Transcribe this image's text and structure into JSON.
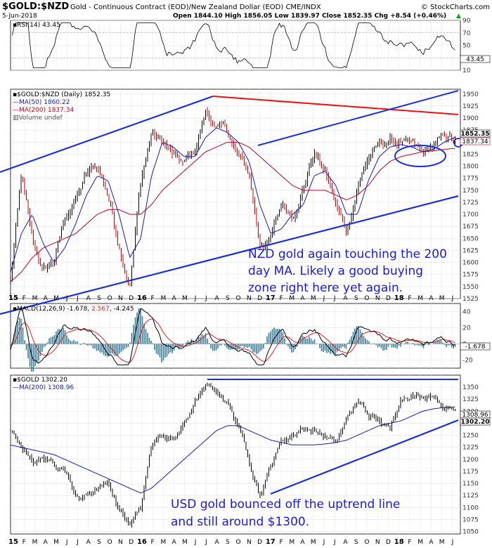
{
  "header": {
    "symbol": "$GOLD:$NZD",
    "description": "Gold - Continuous Contract (EOD)/New Zealand Dollar (EOD)",
    "exchange": "CME/INDX",
    "brand": "© StockCharts.com",
    "date": "5-Jun-2018",
    "ohlc": "Open 1844.10  High 1856.05  Low 1839.97  Close 1852.35  Chg +8.54 (+0.46%)",
    "ohlc_close_marker": "▲"
  },
  "rsi_panel": {
    "label": "RSI(14) 43.45",
    "ticks": [
      "90",
      "70",
      "50",
      "30",
      "10"
    ],
    "last_value": "43.45"
  },
  "nzd_panel": {
    "legend": [
      "$GOLD:$NZD (Daily) 1852.35",
      "MA(50) 1860.22",
      "MA(200) 1837.34",
      "Volume undef"
    ],
    "ticks": [
      "1950",
      "1925",
      "1900",
      "1875",
      "1850",
      "1825",
      "1800",
      "1775",
      "1750",
      "1725",
      "1700",
      "1675",
      "1650",
      "1625",
      "1600",
      "1575",
      "1550",
      "1525"
    ],
    "last_values": [
      "1852.35",
      "1837.34"
    ],
    "annotation_lines": [
      "NZD gold again touching the 200",
      "day MA. Likely a good buying",
      "zone right here yet again."
    ]
  },
  "macd_panel": {
    "label": "MACD(12,26,9) -1.678, 2.567, -4.245",
    "label_parts": [
      "MACD(12,26,9) -1.678, ",
      "2.567",
      ", -4.245"
    ],
    "ticks": [
      "40",
      "20",
      "0",
      "-20"
    ],
    "last_value": "-1.678"
  },
  "usd_panel": {
    "legend": [
      "$GOLD 1302.20",
      "MA(200) 1308.96"
    ],
    "ticks": [
      "1350",
      "1325",
      "1300",
      "1275",
      "1250",
      "1225",
      "1200",
      "1175",
      "1150",
      "1125",
      "1100",
      "1075",
      "1050"
    ],
    "last_values": [
      "1302.20",
      "1308.96"
    ],
    "annotation_lines": [
      "USD gold bounced off the uptrend line",
      "and still around $1300."
    ]
  },
  "x_axis": {
    "labels": [
      "15",
      "F",
      "M",
      "A",
      "M",
      "J",
      "J",
      "A",
      "S",
      "O",
      "N",
      "D",
      "16",
      "F",
      "M",
      "A",
      "M",
      "J",
      "J",
      "A",
      "S",
      "O",
      "N",
      "D",
      "17",
      "F",
      "M",
      "A",
      "M",
      "J",
      "J",
      "A",
      "S",
      "O",
      "N",
      "D",
      "18",
      "F",
      "M",
      "A",
      "M",
      "J"
    ],
    "year_labels": [
      "15",
      "16",
      "17",
      "18"
    ]
  },
  "colors": {
    "price": "#000000",
    "price_down": "#cc0000",
    "ma50": "#1a1ab0",
    "ma200": "#c00020",
    "trendline": "#1b2fd6",
    "resistance_red": "#ee1111",
    "macd_hist": "#3d7f99",
    "macd_signal": "#dd2222",
    "annotation": "#1a1adc"
  },
  "chart_data": [
    {
      "type": "line",
      "title": "$GOLD:$NZD (Daily)",
      "x": [
        "Jan-2015",
        "Feb-2015",
        "Mar-2015",
        "Apr-2015",
        "May-2015",
        "Jun-2015",
        "Jul-2015",
        "Aug-2015",
        "Sep-2015",
        "Oct-2015",
        "Nov-2015",
        "Dec-2015",
        "Jan-2016",
        "Feb-2016",
        "Mar-2016",
        "Apr-2016",
        "May-2016",
        "Jun-2016",
        "Jul-2016",
        "Aug-2016",
        "Sep-2016",
        "Oct-2016",
        "Nov-2016",
        "Dec-2016",
        "Jan-2017",
        "Feb-2017",
        "Mar-2017",
        "Apr-2017",
        "May-2017",
        "Jun-2017",
        "Jul-2017",
        "Aug-2017",
        "Sep-2017",
        "Oct-2017",
        "Nov-2017",
        "Dec-2017",
        "Jan-2018",
        "Feb-2018",
        "Mar-2018",
        "Apr-2018",
        "May-2018",
        "Jun-2018"
      ],
      "series": [
        {
          "name": "$GOLD:$NZD",
          "values": [
            1560,
            1780,
            1640,
            1580,
            1600,
            1690,
            1730,
            1780,
            1800,
            1740,
            1640,
            1560,
            1770,
            1870,
            1850,
            1820,
            1800,
            1830,
            1910,
            1880,
            1870,
            1820,
            1780,
            1640,
            1650,
            1720,
            1700,
            1760,
            1830,
            1790,
            1720,
            1660,
            1760,
            1820,
            1840,
            1850,
            1850,
            1840,
            1820,
            1840,
            1860,
            1852.35
          ]
        },
        {
          "name": "MA(50)",
          "values": [
            1580,
            1660,
            1700,
            1640,
            1600,
            1630,
            1680,
            1740,
            1780,
            1770,
            1700,
            1610,
            1650,
            1780,
            1850,
            1840,
            1820,
            1820,
            1860,
            1880,
            1870,
            1850,
            1810,
            1720,
            1660,
            1670,
            1700,
            1720,
            1780,
            1790,
            1760,
            1700,
            1700,
            1770,
            1820,
            1840,
            1845,
            1840,
            1830,
            1835,
            1850,
            1860.22
          ]
        },
        {
          "name": "MA(200)",
          "values": [
            1560,
            1580,
            1610,
            1630,
            1640,
            1650,
            1660,
            1680,
            1700,
            1710,
            1710,
            1700,
            1700,
            1720,
            1750,
            1770,
            1790,
            1810,
            1830,
            1840,
            1850,
            1850,
            1840,
            1820,
            1800,
            1780,
            1760,
            1750,
            1750,
            1750,
            1740,
            1730,
            1740,
            1760,
            1790,
            1810,
            1820,
            1825,
            1830,
            1832,
            1835,
            1837.34
          ]
        }
      ],
      "ylim": [
        1525,
        1960
      ]
    },
    {
      "type": "line",
      "title": "RSI(14)",
      "series": [
        {
          "name": "RSI(14)",
          "last": 43.45
        }
      ],
      "ylim": [
        10,
        90
      ],
      "reference_lines": [
        70,
        30
      ]
    },
    {
      "type": "bar",
      "title": "MACD(12,26,9)",
      "series": [
        {
          "name": "MACD",
          "last": -1.678
        },
        {
          "name": "Signal",
          "last": 2.567
        },
        {
          "name": "Histogram",
          "last": -4.245
        }
      ],
      "ylim": [
        -30,
        50
      ]
    },
    {
      "type": "line",
      "title": "$GOLD",
      "x": [
        "Jan-2015",
        "Feb-2015",
        "Mar-2015",
        "Apr-2015",
        "May-2015",
        "Jun-2015",
        "Jul-2015",
        "Aug-2015",
        "Sep-2015",
        "Oct-2015",
        "Nov-2015",
        "Dec-2015",
        "Jan-2016",
        "Feb-2016",
        "Mar-2016",
        "Apr-2016",
        "May-2016",
        "Jun-2016",
        "Jul-2016",
        "Aug-2016",
        "Sep-2016",
        "Oct-2016",
        "Nov-2016",
        "Dec-2016",
        "Jan-2017",
        "Feb-2017",
        "Mar-2017",
        "Apr-2017",
        "May-2017",
        "Jun-2017",
        "Jul-2017",
        "Aug-2017",
        "Sep-2017",
        "Oct-2017",
        "Nov-2017",
        "Dec-2017",
        "Jan-2018",
        "Feb-2018",
        "Mar-2018",
        "Apr-2018",
        "May-2018",
        "Jun-2018"
      ],
      "series": [
        {
          "name": "$GOLD",
          "values": [
            1260,
            1230,
            1190,
            1200,
            1190,
            1180,
            1130,
            1130,
            1140,
            1160,
            1090,
            1060,
            1100,
            1230,
            1250,
            1240,
            1270,
            1320,
            1350,
            1340,
            1320,
            1270,
            1200,
            1130,
            1190,
            1240,
            1250,
            1270,
            1260,
            1250,
            1240,
            1280,
            1320,
            1290,
            1280,
            1260,
            1330,
            1340,
            1330,
            1340,
            1310,
            1302.2
          ]
        },
        {
          "name": "MA(200)",
          "values": [
            1230,
            1225,
            1220,
            1215,
            1210,
            1200,
            1190,
            1180,
            1170,
            1160,
            1150,
            1140,
            1130,
            1140,
            1160,
            1180,
            1200,
            1220,
            1240,
            1260,
            1270,
            1270,
            1260,
            1250,
            1240,
            1235,
            1230,
            1230,
            1230,
            1232,
            1235,
            1240,
            1250,
            1260,
            1270,
            1275,
            1280,
            1290,
            1300,
            1305,
            1308,
            1308.96
          ]
        }
      ],
      "ylim": [
        1045,
        1375
      ]
    }
  ]
}
